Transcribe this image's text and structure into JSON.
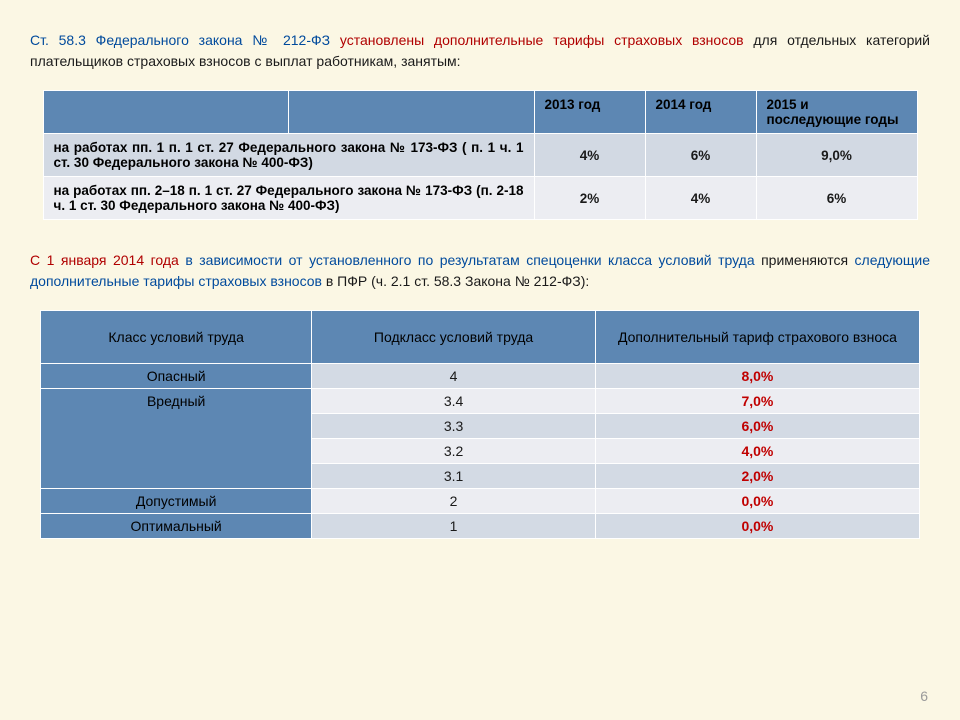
{
  "paragraph1": {
    "blue_part": "Ст. 58.3 Федерального закона № 212-ФЗ",
    "red_part": " установлены дополнительные тарифы страховых взносов",
    "rest": " для отдельных категорий плательщиков страховых взносов с выплат работникам, занятым:"
  },
  "table1": {
    "header_colors": {
      "bg": "#5d87b3"
    },
    "years": [
      "2013 год",
      "2014 год",
      "2015 и последующие годы"
    ],
    "rows": [
      {
        "label": "на работах пп. 1 п. 1 ст. 27 Федерального закона № 173-ФЗ ( п. 1 ч. 1 ст. 30 Федерального закона № 400-ФЗ)",
        "values": [
          "4%",
          "6%",
          "9,0%"
        ],
        "row_bg": "#d2d9e3"
      },
      {
        "label": "на работах пп. 2–18 п. 1 ст. 27 Федерального закона № 173-ФЗ (п. 2-18 ч. 1 ст. 30 Федерального закона № 400-ФЗ)",
        "values": [
          "2%",
          "4%",
          "6%"
        ],
        "row_bg": "#ecedf2"
      }
    ]
  },
  "paragraph2": {
    "red_lead": "С 1 января 2014 года",
    "blue_mid1": " в зависимости от установленного по результатам спецоценки класса условий труда",
    "black_word": " применяются",
    "blue_mid2": " следующие дополнительные тарифы страховых взносов",
    "black_tail": " в ПФР (ч. 2.1 ст. 58.3 Закона № 212-ФЗ):"
  },
  "table2": {
    "headers": [
      "Класс условий труда",
      "Подкласс условий труда",
      "Дополнительный тариф страхового взноса"
    ],
    "header_bg": "#5d87b3",
    "row_odd_bg": "#d3dae4",
    "row_even_bg": "#ecedf2",
    "tarif_color": "#c00000",
    "rows": [
      {
        "class": "Опасный",
        "rowspan": 1,
        "sub": "4",
        "tarif": "8,0%",
        "parity": "odd"
      },
      {
        "class": "Вредный",
        "rowspan": 4,
        "sub": "3.4",
        "tarif": "7,0%",
        "parity": "even"
      },
      {
        "class": "",
        "rowspan": 0,
        "sub": "3.3",
        "tarif": "6,0%",
        "parity": "odd"
      },
      {
        "class": "",
        "rowspan": 0,
        "sub": "3.2",
        "tarif": "4,0%",
        "parity": "even"
      },
      {
        "class": "",
        "rowspan": 0,
        "sub": "3.1",
        "tarif": "2,0%",
        "parity": "odd"
      },
      {
        "class": "Допустимый",
        "rowspan": 1,
        "sub": "2",
        "tarif": "0,0%",
        "parity": "even"
      },
      {
        "class": "Оптимальный",
        "rowspan": 1,
        "sub": "1",
        "tarif": "0,0%",
        "parity": "odd"
      }
    ]
  },
  "page_number": "6",
  "colors": {
    "page_bg": "#fbf7e4",
    "text_blue": "#004a9c",
    "text_red": "#b00000"
  }
}
